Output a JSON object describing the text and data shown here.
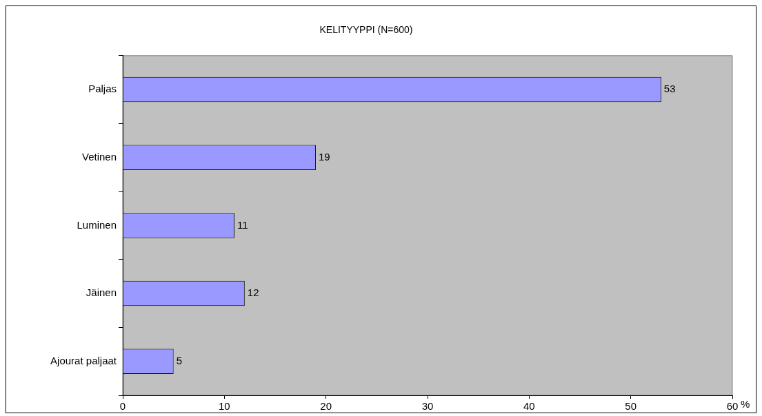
{
  "chart_data": {
    "type": "bar",
    "orientation": "horizontal",
    "title": "KELITYYPPI (N=600)",
    "xlabel": "%",
    "categories": [
      "Paljas",
      "Vetinen",
      "Luminen",
      "Jäinen",
      "Ajourat paljaat"
    ],
    "values": [
      53,
      19,
      11,
      12,
      5
    ],
    "color": "#9999ff",
    "xlim": [
      0,
      60
    ],
    "xticks": [
      0,
      10,
      20,
      30,
      40,
      50,
      60
    ],
    "data_labels": true
  }
}
